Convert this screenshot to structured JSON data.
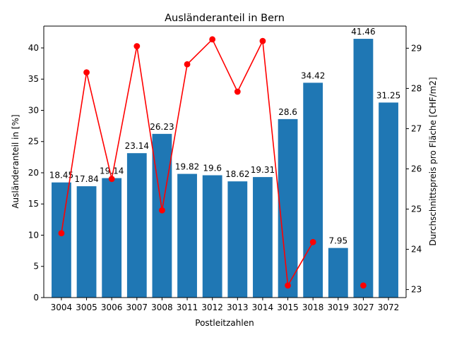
{
  "chart_data": {
    "type": "bar",
    "title": "Ausländeranteil in Bern",
    "xlabel": "Postleitzahlen",
    "ylabel": "Ausländeranteil in [%]",
    "ylabel_right": "Durchschnittspreis pro Fläche [CHF/m2]",
    "categories": [
      "3004",
      "3005",
      "3006",
      "3007",
      "3008",
      "3011",
      "3012",
      "3013",
      "3014",
      "3015",
      "3018",
      "3019",
      "3027",
      "3072"
    ],
    "series": [
      {
        "kind": "bar",
        "axis": "left",
        "values": [
          18.45,
          17.84,
          19.14,
          23.14,
          26.23,
          19.82,
          19.6,
          18.62,
          19.31,
          28.6,
          34.42,
          7.95,
          41.46,
          31.25
        ],
        "labels": [
          "18.45",
          "17.84",
          "19.14",
          "23.14",
          "26.23",
          "19.82",
          "19.6",
          "18.62",
          "19.31",
          "28.6",
          "34.42",
          "7.95",
          "41.46",
          "31.25"
        ],
        "color": "#1f77b4"
      },
      {
        "kind": "line",
        "axis": "right",
        "values": [
          24.4,
          28.4,
          25.75,
          29.05,
          24.97,
          28.6,
          29.22,
          27.92,
          29.18,
          23.1,
          24.18,
          null,
          23.1,
          null
        ],
        "color": "#ff0000"
      }
    ],
    "ylim": [
      0,
      43.5
    ],
    "yticks": [
      0,
      5,
      10,
      15,
      20,
      25,
      30,
      35,
      40
    ],
    "ylim_right": [
      22.8,
      29.55
    ],
    "yticks_right": [
      23,
      24,
      25,
      26,
      27,
      28,
      29
    ],
    "grid": false,
    "legend": "none"
  }
}
